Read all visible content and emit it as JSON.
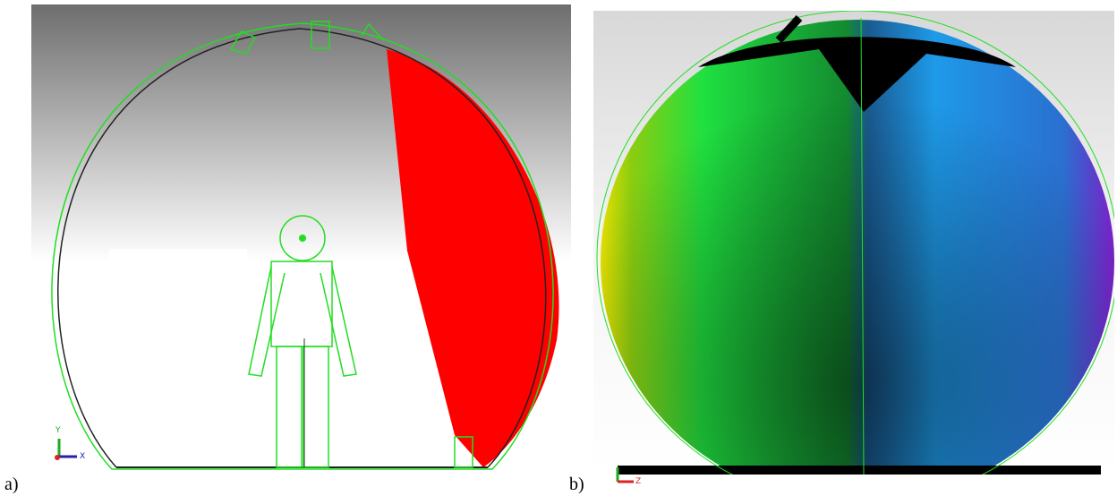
{
  "panels": [
    {
      "label": "a)",
      "axes": {
        "y": "Y",
        "x": "X"
      }
    },
    {
      "label": "b)",
      "axes": {
        "x": "Z"
      }
    }
  ]
}
